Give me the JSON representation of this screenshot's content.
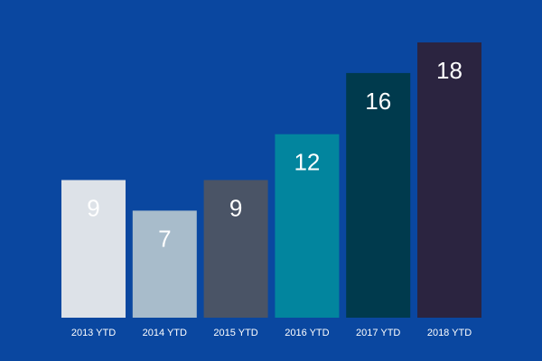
{
  "colors": {
    "background": "#0a47a0"
  },
  "chart_data": {
    "type": "bar",
    "title": "",
    "xlabel": "",
    "ylabel": "",
    "categories": [
      "2013 YTD",
      "2014 YTD",
      "2015 YTD",
      "2016 YTD",
      "2017 YTD",
      "2018 YTD"
    ],
    "values": [
      9,
      7,
      9,
      12,
      16,
      18
    ],
    "bar_colors": [
      "#dde2e8",
      "#a8bccb",
      "#4a5466",
      "#02859e",
      "#003a4d",
      "#2b2440"
    ],
    "label_colors": [
      "#ffffff",
      "#ffffff",
      "#ffffff",
      "#ffffff",
      "#ffffff",
      "#ffffff"
    ],
    "ylim": [
      0,
      18
    ],
    "grid": false,
    "legend": "none",
    "data_labels": true
  }
}
